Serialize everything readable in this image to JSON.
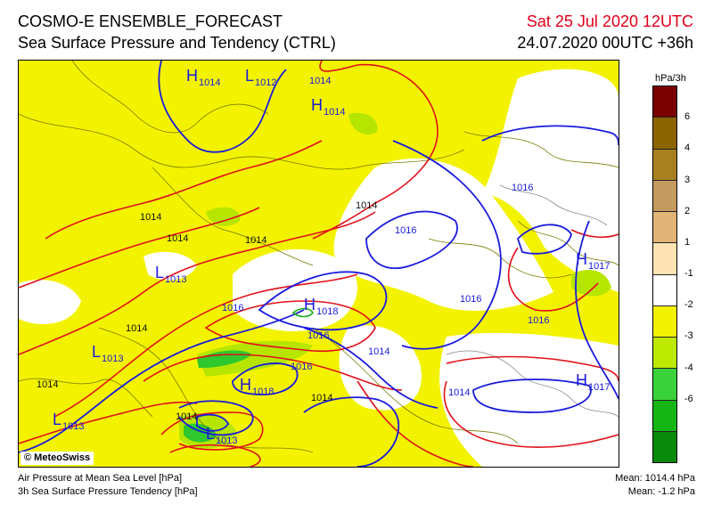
{
  "header": {
    "title": "COSMO-E ENSEMBLE_FORECAST",
    "subtitle": "Sea Surface Pressure and Tendency (CTRL)",
    "valid_time": "Sat 25 Jul 2020 12UTC",
    "run_time": "24.07.2020 00UTC +36h"
  },
  "map": {
    "copyright": "© MeteoSwiss",
    "pressure_systems": [
      {
        "type": "H",
        "value": "1014"
      },
      {
        "type": "L",
        "value": "1012"
      },
      {
        "type": "H",
        "value": "1014"
      },
      {
        "type": "L",
        "value": "1013"
      },
      {
        "type": "H",
        "value": "1018"
      },
      {
        "type": "L",
        "value": "1013"
      },
      {
        "type": "H",
        "value": "1018"
      },
      {
        "type": "L",
        "value": "1013"
      },
      {
        "type": "L",
        "value": "1013"
      },
      {
        "type": "H",
        "value": "1017"
      },
      {
        "type": "H",
        "value": "1017"
      }
    ],
    "isobar_labels": [
      "1014",
      "1016",
      "1014",
      "1014",
      "1014",
      "1016",
      "1016",
      "1016",
      "1014",
      "1016",
      "1014",
      "1016",
      "1014",
      "1014",
      "1014",
      "1014",
      "1016",
      "1014"
    ]
  },
  "legend": {
    "unit": "hPa/3h",
    "ticks": [
      "6",
      "4",
      "3",
      "2",
      "1",
      "-1",
      "-2",
      "-3",
      "-4",
      "-6"
    ],
    "colors": [
      "#7a0000",
      "#8b6400",
      "#a88020",
      "#c49a60",
      "#e2b478",
      "#fde3b4",
      "#ffffff",
      "#f3f300",
      "#bde800",
      "#3ad23a",
      "#16b516",
      "#0a8a0a"
    ]
  },
  "footer": {
    "left_line1": "Air Pressure at Mean Sea Level [hPa]",
    "left_line2": "3h Sea Surface Pressure Tendency [hPa]",
    "right_line1": "Mean: 1014.4 hPa",
    "right_line2": "Mean:   -1.2 hPa"
  }
}
